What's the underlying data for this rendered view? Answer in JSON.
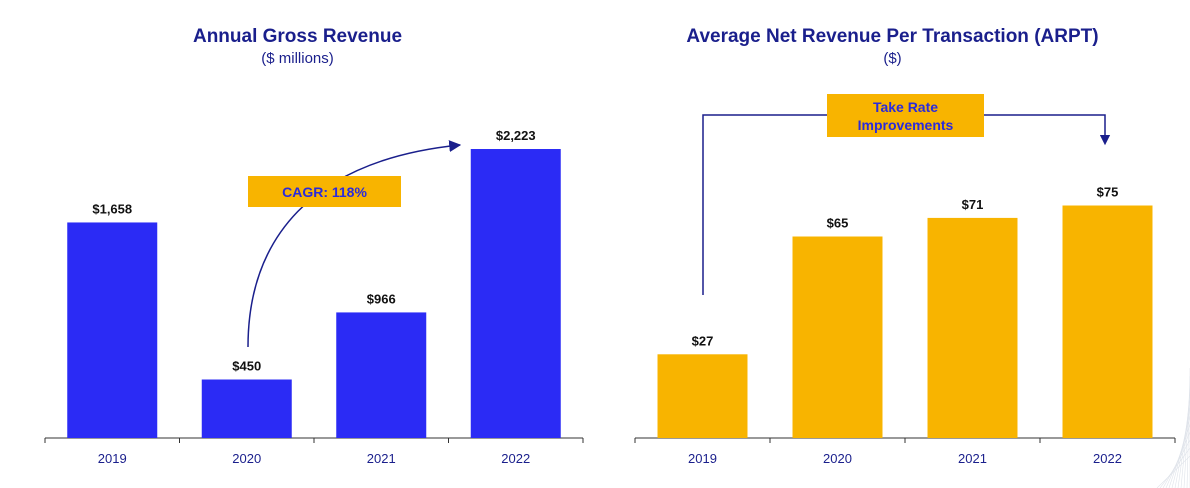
{
  "colors": {
    "blue": "#2b2bf5",
    "gold": "#f8b400",
    "title": "#1a1f8c",
    "annotation": "#1a1f8c"
  },
  "chart_data": [
    {
      "type": "bar",
      "title": "Annual Gross Revenue",
      "subtitle": "($ millions)",
      "categories": [
        "2019",
        "2020",
        "2021",
        "2022"
      ],
      "values": [
        1658,
        450,
        966,
        2223
      ],
      "data_labels": [
        "$1,658",
        "$450",
        "$966",
        "$2,223"
      ],
      "ylim": [
        0,
        2500
      ],
      "color": "#2b2bf5",
      "grid": false,
      "annotation": "CAGR: 118%"
    },
    {
      "type": "bar",
      "title": "Average Net Revenue Per Transaction (ARPT)",
      "subtitle": "($)",
      "categories": [
        "2019",
        "2020",
        "2021",
        "2022"
      ],
      "values": [
        27,
        65,
        71,
        75
      ],
      "data_labels": [
        "$27",
        "$65",
        "$71",
        "$75"
      ],
      "ylim": [
        0,
        100
      ],
      "color": "#f8b400",
      "grid": false,
      "annotation": "Take Rate Improvements"
    }
  ]
}
